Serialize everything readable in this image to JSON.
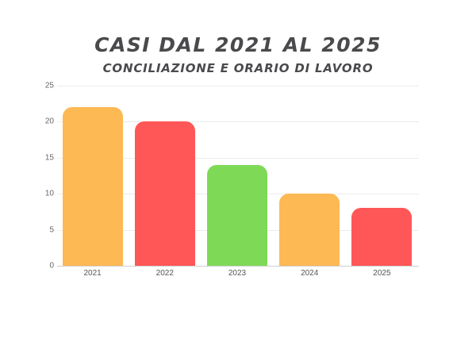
{
  "header": {
    "title": "CASI DAL 2021 AL 2025",
    "subtitle": "CONCILIAZIONE E ORARIO DI LAVORO"
  },
  "colors": {
    "orange": "#fdb954",
    "red": "#ff5757",
    "green": "#7ed957"
  },
  "chart_data": {
    "type": "bar",
    "title": "CASI DAL 2021 AL 2025",
    "subtitle": "CONCILIAZIONE E ORARIO DI LAVORO",
    "categories": [
      "2021",
      "2022",
      "2023",
      "2024",
      "2025"
    ],
    "values": [
      22,
      20,
      14,
      10,
      8
    ],
    "bar_colors": [
      "#fdb954",
      "#ff5757",
      "#7ed957",
      "#fdb954",
      "#ff5757"
    ],
    "xlabel": "",
    "ylabel": "",
    "ylim": [
      0,
      25
    ],
    "yticks": [
      "0",
      "5",
      "10",
      "15",
      "20",
      "25"
    ],
    "grid": true,
    "legend": null
  }
}
